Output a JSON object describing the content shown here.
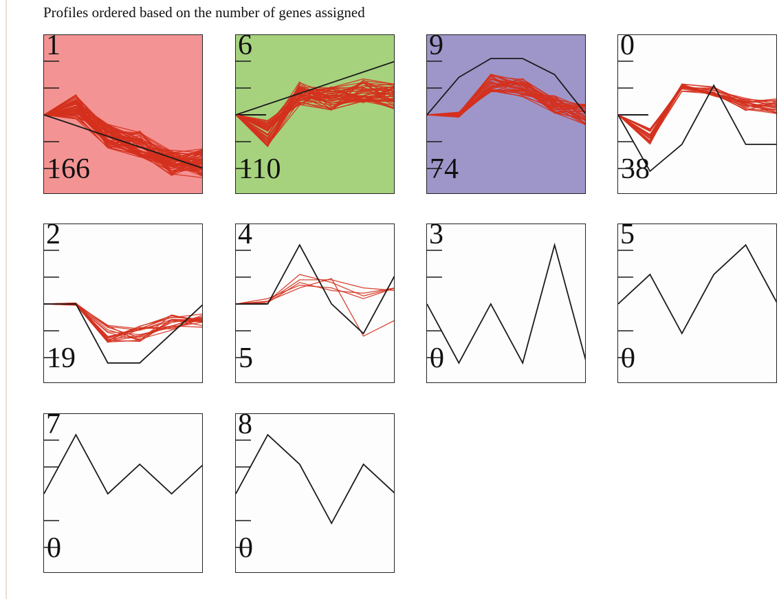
{
  "page": {
    "title": "Profiles ordered based on the number of genes assigned"
  },
  "colors": {
    "gene_line": "#d4311e",
    "model_line": "#1a1a1a",
    "axis_tick": "#1a1a1a"
  },
  "chart_data": [
    {
      "type": "line",
      "profile_id": "1",
      "genes_assigned": "166",
      "background": "#f49393",
      "xlim": [
        0,
        5
      ],
      "ylim": [
        -3,
        3
      ],
      "model_profile": [
        0,
        -0.33,
        -0.67,
        -1.0,
        -1.33,
        -1.67,
        -2.0
      ],
      "model_x": [
        0,
        1,
        2,
        3,
        4,
        5,
        6
      ],
      "gene_bundle": {
        "count": 60,
        "center": [
          0,
          0.3,
          -0.8,
          -1.1,
          -1.8,
          -1.8
        ],
        "spread": [
          0,
          0.45,
          0.45,
          0.5,
          0.5,
          0.55
        ],
        "seed": 11
      }
    },
    {
      "type": "line",
      "profile_id": "6",
      "genes_assigned": "110",
      "background": "#a6d27e",
      "xlim": [
        0,
        5
      ],
      "ylim": [
        -3,
        3
      ],
      "model_profile": [
        0,
        0.4,
        0.8,
        1.2,
        1.6,
        2.0
      ],
      "model_x": [
        0,
        1,
        2,
        3,
        4,
        5
      ],
      "gene_bundle": {
        "count": 45,
        "center": [
          0,
          -0.7,
          0.8,
          0.6,
          0.9,
          0.7
        ],
        "spread": [
          0,
          0.5,
          0.45,
          0.45,
          0.45,
          0.5
        ],
        "seed": 23
      }
    },
    {
      "type": "line",
      "profile_id": "9",
      "genes_assigned": "74",
      "background": "#9e96c9",
      "xlim": [
        0,
        5
      ],
      "ylim": [
        -3,
        3
      ],
      "model_profile": [
        0,
        1.4,
        2.1,
        2.1,
        1.5,
        0
      ],
      "model_x": [
        0,
        1,
        2,
        3,
        4,
        5
      ],
      "gene_bundle": {
        "count": 35,
        "center": [
          0,
          0,
          1.2,
          1.0,
          0.4,
          0.0
        ],
        "spread": [
          0,
          0.1,
          0.35,
          0.35,
          0.35,
          0.4
        ],
        "seed": 37
      }
    },
    {
      "type": "line",
      "profile_id": "0",
      "genes_assigned": "38",
      "background": "#fdfdfd",
      "xlim": [
        0,
        5
      ],
      "ylim": [
        -3,
        3
      ],
      "model_profile": [
        0,
        -2.1,
        -1.1,
        1.1,
        -1.1,
        -1.1
      ],
      "model_x": [
        0,
        1,
        2,
        3,
        4,
        5
      ],
      "gene_bundle": {
        "count": 22,
        "center": [
          0,
          -0.8,
          1.0,
          0.9,
          0.4,
          0.3
        ],
        "spread": [
          0,
          0.3,
          0.15,
          0.2,
          0.25,
          0.3
        ],
        "seed": 51
      }
    },
    {
      "type": "line",
      "profile_id": "2",
      "genes_assigned": "19",
      "background": "#fdfdfd",
      "xlim": [
        0,
        5
      ],
      "ylim": [
        -3,
        3
      ],
      "model_profile": [
        0,
        0,
        -2.2,
        -2.2,
        0
      ],
      "model_x": [
        0,
        1,
        2,
        3,
        5
      ],
      "gene_bundle": {
        "count": 18,
        "center": [
          0,
          0,
          -1.1,
          -1.1,
          -0.7,
          -0.6
        ],
        "spread": [
          0,
          0.05,
          0.35,
          0.3,
          0.3,
          0.3
        ],
        "seed": 67
      }
    },
    {
      "type": "line",
      "profile_id": "4",
      "genes_assigned": "5",
      "background": "#fdfdfd",
      "xlim": [
        0,
        5
      ],
      "ylim": [
        -3,
        3
      ],
      "model_profile": [
        0,
        0,
        2.2,
        0,
        -1.1,
        1.1
      ],
      "model_x": [
        0,
        1,
        2,
        3,
        4,
        5
      ],
      "gene_lines": [
        [
          0,
          0.1,
          1.1,
          0.8,
          0.3,
          0.6
        ],
        [
          0,
          0.1,
          0.9,
          0.9,
          0.6,
          0.5
        ],
        [
          0,
          0.2,
          0.7,
          0.6,
          0.2,
          0.6
        ],
        [
          0,
          0.1,
          0.6,
          0.95,
          -1.2,
          -0.6
        ],
        [
          0,
          0.05,
          0.8,
          0.5,
          0.4,
          0.6
        ]
      ]
    },
    {
      "type": "line",
      "profile_id": "3",
      "genes_assigned": "0",
      "background": "#fdfdfd",
      "xlim": [
        0,
        5
      ],
      "ylim": [
        -3,
        3
      ],
      "model_profile": [
        0,
        -2.2,
        0,
        -2.2,
        2.2,
        -2.2
      ],
      "model_x": [
        0,
        1,
        2,
        3,
        4,
        5
      ]
    },
    {
      "type": "line",
      "profile_id": "5",
      "genes_assigned": "0",
      "background": "#fdfdfd",
      "xlim": [
        0,
        5
      ],
      "ylim": [
        -3,
        3
      ],
      "model_profile": [
        0,
        1.1,
        -1.1,
        1.1,
        2.2,
        0
      ],
      "model_x": [
        0,
        1,
        2,
        3,
        4,
        5
      ]
    },
    {
      "type": "line",
      "profile_id": "7",
      "genes_assigned": "0",
      "background": "#fdfdfd",
      "xlim": [
        0,
        5
      ],
      "ylim": [
        -3,
        3
      ],
      "model_profile": [
        0,
        2.2,
        0,
        1.1,
        0,
        1.1
      ],
      "model_x": [
        0,
        1,
        2,
        3,
        4,
        5
      ]
    },
    {
      "type": "line",
      "profile_id": "8",
      "genes_assigned": "0",
      "background": "#fdfdfd",
      "xlim": [
        0,
        5
      ],
      "ylim": [
        -3,
        3
      ],
      "model_profile": [
        0,
        2.2,
        1.1,
        -1.1,
        1.1,
        0
      ],
      "model_x": [
        0,
        1,
        2,
        3,
        4,
        5
      ]
    }
  ]
}
